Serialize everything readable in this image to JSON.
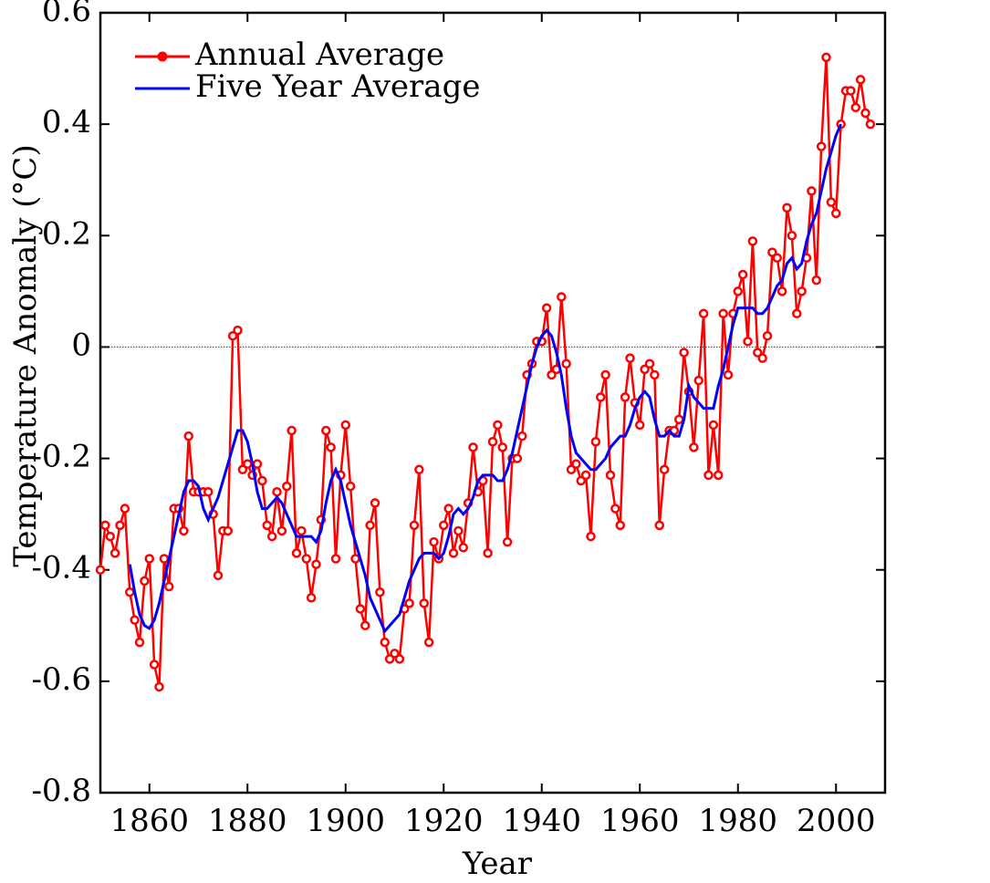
{
  "chart_data": {
    "type": "line",
    "xlabel": "Year",
    "ylabel": "Temperature Anomaly (°C)",
    "xlim": [
      1850,
      2010
    ],
    "ylim": [
      -0.8,
      0.6
    ],
    "xticks": [
      1860,
      1880,
      1900,
      1920,
      1940,
      1960,
      1980,
      2000
    ],
    "yticks": [
      -0.8,
      -0.6,
      -0.4,
      -0.2,
      0,
      0.2,
      0.4,
      0.6
    ],
    "zero_line": true,
    "legend": "upper left",
    "x": [
      1850,
      1851,
      1852,
      1853,
      1854,
      1855,
      1856,
      1857,
      1858,
      1859,
      1860,
      1861,
      1862,
      1863,
      1864,
      1865,
      1866,
      1867,
      1868,
      1869,
      1870,
      1871,
      1872,
      1873,
      1874,
      1875,
      1876,
      1877,
      1878,
      1879,
      1880,
      1881,
      1882,
      1883,
      1884,
      1885,
      1886,
      1887,
      1888,
      1889,
      1890,
      1891,
      1892,
      1893,
      1894,
      1895,
      1896,
      1897,
      1898,
      1899,
      1900,
      1901,
      1902,
      1903,
      1904,
      1905,
      1906,
      1907,
      1908,
      1909,
      1910,
      1911,
      1912,
      1913,
      1914,
      1915,
      1916,
      1917,
      1918,
      1919,
      1920,
      1921,
      1922,
      1923,
      1924,
      1925,
      1926,
      1927,
      1928,
      1929,
      1930,
      1931,
      1932,
      1933,
      1934,
      1935,
      1936,
      1937,
      1938,
      1939,
      1940,
      1941,
      1942,
      1943,
      1944,
      1945,
      1946,
      1947,
      1948,
      1949,
      1950,
      1951,
      1952,
      1953,
      1954,
      1955,
      1956,
      1957,
      1958,
      1959,
      1960,
      1961,
      1962,
      1963,
      1964,
      1965,
      1966,
      1967,
      1968,
      1969,
      1970,
      1971,
      1972,
      1973,
      1974,
      1975,
      1976,
      1977,
      1978,
      1979,
      1980,
      1981,
      1982,
      1983,
      1984,
      1985,
      1986,
      1987,
      1988,
      1989,
      1990,
      1991,
      1992,
      1993,
      1994,
      1995,
      1996,
      1997,
      1998,
      1999,
      2000,
      2001,
      2002,
      2003,
      2004,
      2005,
      2006,
      2007
    ],
    "series": [
      {
        "name": "Annual Average",
        "color": "#ff0000",
        "marker": true,
        "values": [
          -0.4,
          -0.32,
          -0.34,
          -0.37,
          -0.32,
          -0.29,
          -0.44,
          -0.49,
          -0.53,
          -0.42,
          -0.38,
          -0.57,
          -0.61,
          -0.38,
          -0.43,
          -0.29,
          -0.29,
          -0.33,
          -0.16,
          -0.26,
          -0.26,
          -0.26,
          -0.26,
          -0.3,
          -0.41,
          -0.33,
          -0.33,
          0.02,
          0.03,
          -0.22,
          -0.21,
          -0.23,
          -0.21,
          -0.24,
          -0.32,
          -0.34,
          -0.26,
          -0.33,
          -0.25,
          -0.15,
          -0.37,
          -0.33,
          -0.38,
          -0.45,
          -0.39,
          -0.31,
          -0.15,
          -0.18,
          -0.38,
          -0.23,
          -0.14,
          -0.25,
          -0.38,
          -0.47,
          -0.5,
          -0.32,
          -0.28,
          -0.44,
          -0.53,
          -0.56,
          -0.55,
          -0.56,
          -0.47,
          -0.46,
          -0.32,
          -0.22,
          -0.46,
          -0.53,
          -0.35,
          -0.38,
          -0.32,
          -0.29,
          -0.37,
          -0.33,
          -0.36,
          -0.28,
          -0.18,
          -0.26,
          -0.24,
          -0.37,
          -0.17,
          -0.14,
          -0.18,
          -0.35,
          -0.2,
          -0.2,
          -0.16,
          -0.05,
          -0.03,
          0.01,
          0.01,
          0.07,
          -0.05,
          -0.04,
          0.09,
          -0.03,
          -0.22,
          -0.21,
          -0.24,
          -0.23,
          -0.34,
          -0.17,
          -0.09,
          -0.05,
          -0.23,
          -0.29,
          -0.32,
          -0.09,
          -0.02,
          -0.1,
          -0.14,
          -0.04,
          -0.03,
          -0.05,
          -0.32,
          -0.22,
          -0.15,
          -0.15,
          -0.13,
          -0.01,
          -0.08,
          -0.18,
          -0.06,
          0.06,
          -0.23,
          -0.14,
          -0.23,
          0.06,
          -0.05,
          0.06,
          0.1,
          0.13,
          0.01,
          0.19,
          -0.01,
          -0.02,
          0.02,
          0.17,
          0.16,
          0.1,
          0.25,
          0.2,
          0.06,
          0.1,
          0.16,
          0.28,
          0.12,
          0.36,
          0.52,
          0.26,
          0.24,
          0.4,
          0.46,
          0.46,
          0.43,
          0.48,
          0.42,
          0.4
        ]
      },
      {
        "name": "Five Year Average",
        "color": "#0000ff",
        "marker": false,
        "values": [
          null,
          null,
          null,
          null,
          null,
          null,
          -0.39,
          -0.44,
          -0.48,
          -0.5,
          -0.505,
          -0.49,
          -0.46,
          -0.42,
          -0.38,
          -0.34,
          -0.3,
          -0.26,
          -0.24,
          -0.24,
          -0.25,
          -0.29,
          -0.31,
          -0.29,
          -0.27,
          -0.24,
          -0.21,
          -0.18,
          -0.15,
          -0.15,
          -0.17,
          -0.21,
          -0.26,
          -0.29,
          -0.29,
          -0.28,
          -0.27,
          -0.28,
          -0.3,
          -0.32,
          -0.34,
          -0.34,
          -0.34,
          -0.34,
          -0.35,
          -0.33,
          -0.28,
          -0.24,
          -0.22,
          -0.24,
          -0.28,
          -0.32,
          -0.35,
          -0.38,
          -0.41,
          -0.45,
          -0.47,
          -0.49,
          -0.51,
          -0.5,
          -0.49,
          -0.48,
          -0.45,
          -0.42,
          -0.4,
          -0.38,
          -0.37,
          -0.37,
          -0.37,
          -0.38,
          -0.37,
          -0.34,
          -0.3,
          -0.29,
          -0.3,
          -0.29,
          -0.27,
          -0.24,
          -0.23,
          -0.23,
          -0.23,
          -0.24,
          -0.24,
          -0.22,
          -0.19,
          -0.15,
          -0.11,
          -0.07,
          -0.03,
          0.0,
          0.02,
          0.03,
          0.02,
          -0.01,
          -0.05,
          -0.11,
          -0.16,
          -0.19,
          -0.2,
          -0.21,
          -0.22,
          -0.22,
          -0.21,
          -0.2,
          -0.18,
          -0.17,
          -0.16,
          -0.16,
          -0.14,
          -0.11,
          -0.09,
          -0.08,
          -0.09,
          -0.13,
          -0.16,
          -0.16,
          -0.15,
          -0.16,
          -0.16,
          -0.13,
          -0.07,
          -0.09,
          -0.1,
          -0.11,
          -0.11,
          -0.11,
          -0.07,
          -0.04,
          0.0,
          0.04,
          0.07,
          0.07,
          0.07,
          0.07,
          0.06,
          0.06,
          0.07,
          0.09,
          0.11,
          0.12,
          0.15,
          0.16,
          0.14,
          0.15,
          0.19,
          0.22,
          0.24,
          0.28,
          0.32,
          0.35,
          0.38,
          0.4,
          null,
          null,
          null,
          null,
          null,
          null
        ]
      }
    ]
  }
}
